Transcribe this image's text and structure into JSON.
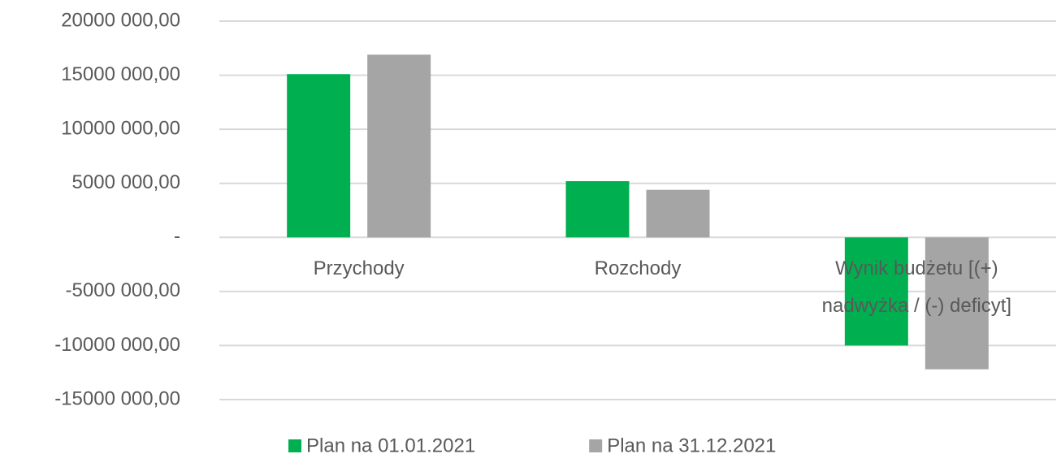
{
  "chart_data": {
    "type": "bar",
    "categories": [
      "Przychody",
      "Rozchody",
      "Wynik budżetu [(+) nadwyżka / (-) deficyt]"
    ],
    "series": [
      {
        "name": "Plan na 01.01.2021",
        "color": "#00b050",
        "values": [
          15100000,
          5200000,
          -10000000
        ]
      },
      {
        "name": "Plan na 31.12.2021",
        "color": "#a5a5a5",
        "values": [
          16900000,
          4400000,
          -12200000
        ]
      }
    ],
    "ylim": [
      -15000000,
      20000000
    ],
    "yticks": [
      {
        "value": -15000000,
        "label": "-15000 000,00"
      },
      {
        "value": -10000000,
        "label": "-10000 000,00"
      },
      {
        "value": -5000000,
        "label": "-5000 000,00"
      },
      {
        "value": 0,
        "label": "-"
      },
      {
        "value": 5000000,
        "label": "5000 000,00"
      },
      {
        "value": 10000000,
        "label": "10000 000,00"
      },
      {
        "value": 15000000,
        "label": "15000 000,00"
      },
      {
        "value": 20000000,
        "label": "20000 000,00"
      }
    ],
    "grid": true,
    "legend": "bottom"
  }
}
